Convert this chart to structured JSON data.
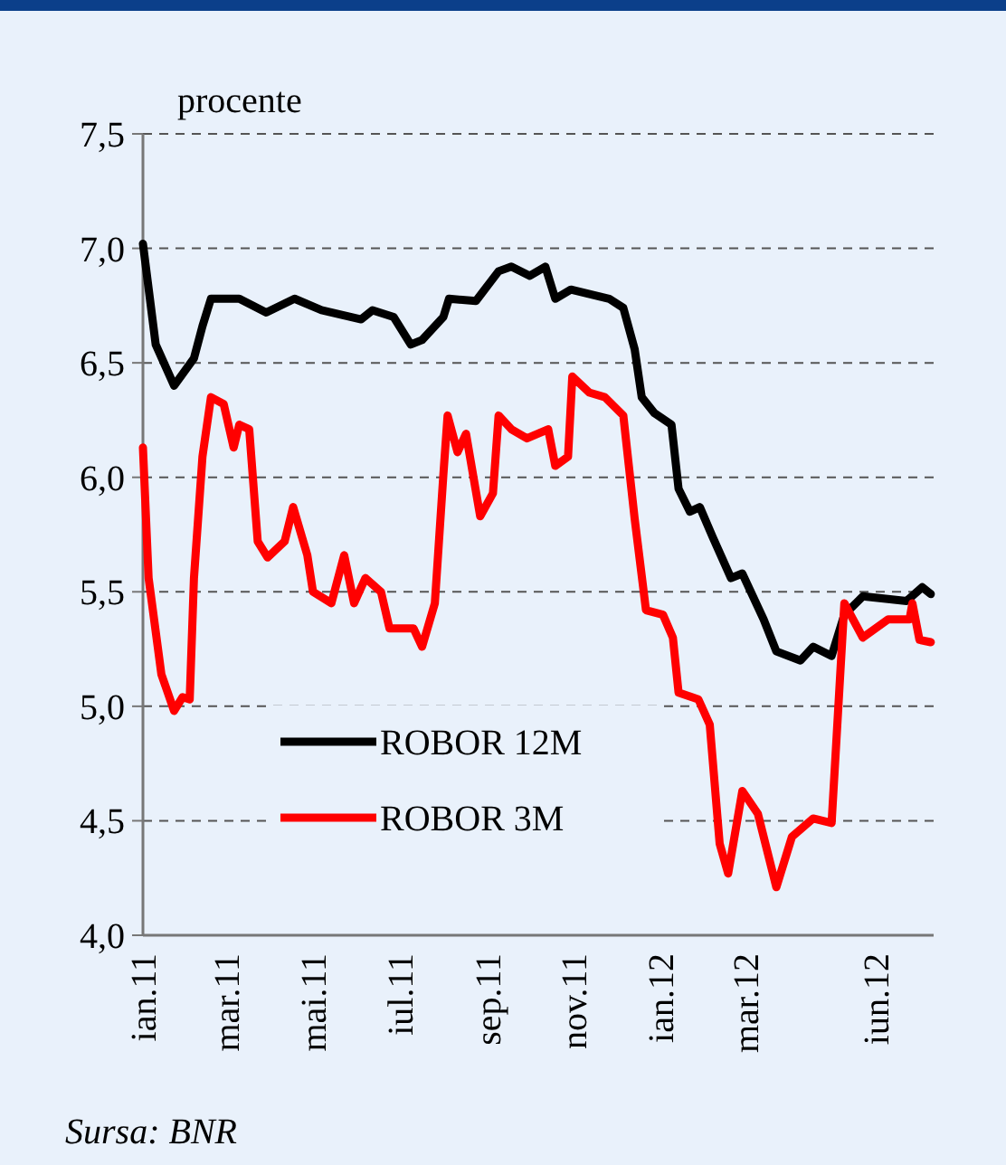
{
  "chart_data": {
    "type": "line",
    "ylabel": "procente",
    "annotations": [
      "Sursa: BNR"
    ],
    "xlim": [
      "2011-01-01",
      "2012-07-12"
    ],
    "xticks": [
      {
        "value": "2011-01-01",
        "label": "ian.11"
      },
      {
        "value": "2011-03-01",
        "label": "mar.11"
      },
      {
        "value": "2011-05-01",
        "label": "mai.11"
      },
      {
        "value": "2011-07-01",
        "label": "iul.11"
      },
      {
        "value": "2011-09-01",
        "label": "sep.11"
      },
      {
        "value": "2011-11-01",
        "label": "nov.11"
      },
      {
        "value": "2012-01-01",
        "label": "ian.12"
      },
      {
        "value": "2012-03-01",
        "label": "mar.12"
      },
      {
        "value": "2012-06-01",
        "label": "iun.12"
      }
    ],
    "ylim": [
      4.0,
      7.5
    ],
    "yticks": [
      {
        "value": 4.0,
        "label": "4,0"
      },
      {
        "value": 4.5,
        "label": "4,5"
      },
      {
        "value": 5.0,
        "label": "5,0"
      },
      {
        "value": 5.5,
        "label": "5,5"
      },
      {
        "value": 6.0,
        "label": "6,0"
      },
      {
        "value": 6.5,
        "label": "6,5"
      },
      {
        "value": 7.0,
        "label": "7,0"
      },
      {
        "value": 7.5,
        "label": "7,5"
      }
    ],
    "grid": "y",
    "legend": "bottom left",
    "marker": "none",
    "line_style": "solid",
    "series": [
      {
        "name": "ROBOR 12M",
        "color": "#000000",
        "x": [
          "2011-01-01",
          "2011-01-10",
          "2011-01-23",
          "2011-02-06",
          "2011-02-12",
          "2011-02-18",
          "2011-03-10",
          "2011-03-29",
          "2011-04-18",
          "2011-05-07",
          "2011-06-04",
          "2011-06-12",
          "2011-06-27",
          "2011-07-09",
          "2011-07-17",
          "2011-08-01",
          "2011-08-05",
          "2011-08-24",
          "2011-09-09",
          "2011-09-18",
          "2011-10-01",
          "2011-10-12",
          "2011-10-19",
          "2011-10-30",
          "2011-11-26",
          "2011-12-06",
          "2011-12-14",
          "2011-12-19",
          "2011-12-28",
          "2012-01-09",
          "2012-01-14",
          "2012-01-22",
          "2012-01-29",
          "2012-02-07",
          "2012-02-20",
          "2012-02-28",
          "2012-03-14",
          "2012-03-23",
          "2012-04-09",
          "2012-04-18",
          "2012-05-01",
          "2012-05-10",
          "2012-05-23",
          "2012-06-23",
          "2012-07-04",
          "2012-07-10"
        ],
        "values": [
          7.02,
          6.58,
          6.4,
          6.52,
          6.66,
          6.78,
          6.78,
          6.72,
          6.78,
          6.73,
          6.69,
          6.73,
          6.7,
          6.58,
          6.6,
          6.7,
          6.78,
          6.77,
          6.9,
          6.92,
          6.88,
          6.92,
          6.78,
          6.82,
          6.78,
          6.74,
          6.56,
          6.35,
          6.28,
          6.23,
          5.95,
          5.85,
          5.87,
          5.74,
          5.56,
          5.58,
          5.38,
          5.24,
          5.2,
          5.26,
          5.22,
          5.4,
          5.48,
          5.46,
          5.52,
          5.49
        ]
      },
      {
        "name": "ROBOR 3M",
        "color": "#ff0000",
        "x": [
          "2011-01-01",
          "2011-01-05",
          "2011-01-14",
          "2011-01-23",
          "2011-01-29",
          "2011-02-03",
          "2011-02-06",
          "2011-02-12",
          "2011-02-18",
          "2011-02-27",
          "2011-03-06",
          "2011-03-10",
          "2011-03-17",
          "2011-03-23",
          "2011-03-30",
          "2011-04-11",
          "2011-04-17",
          "2011-04-27",
          "2011-05-01",
          "2011-05-14",
          "2011-05-23",
          "2011-05-30",
          "2011-06-07",
          "2011-06-18",
          "2011-06-24",
          "2011-07-11",
          "2011-07-17",
          "2011-07-26",
          "2011-08-01",
          "2011-08-04",
          "2011-08-11",
          "2011-08-17",
          "2011-08-27",
          "2011-09-05",
          "2011-09-09",
          "2011-09-18",
          "2011-09-29",
          "2011-10-14",
          "2011-10-19",
          "2011-10-28",
          "2011-10-31",
          "2011-11-12",
          "2011-11-23",
          "2011-12-06",
          "2011-12-14",
          "2011-12-22",
          "2012-01-03",
          "2012-01-10",
          "2012-01-14",
          "2012-01-28",
          "2012-02-05",
          "2012-02-12",
          "2012-02-18",
          "2012-02-28",
          "2012-03-10",
          "2012-03-23",
          "2012-04-03",
          "2012-04-18",
          "2012-05-01",
          "2012-05-10",
          "2012-05-23",
          "2012-06-10",
          "2012-06-25",
          "2012-06-27",
          "2012-07-02",
          "2012-07-10"
        ],
        "values": [
          6.13,
          5.56,
          5.14,
          4.98,
          5.04,
          5.03,
          5.56,
          6.09,
          6.35,
          6.32,
          6.13,
          6.23,
          6.21,
          5.72,
          5.65,
          5.72,
          5.87,
          5.66,
          5.5,
          5.45,
          5.66,
          5.45,
          5.56,
          5.5,
          5.34,
          5.34,
          5.26,
          5.45,
          6.01,
          6.27,
          6.11,
          6.19,
          5.83,
          5.93,
          6.27,
          6.21,
          6.17,
          6.21,
          6.05,
          6.09,
          6.44,
          6.37,
          6.35,
          6.27,
          5.82,
          5.42,
          5.4,
          5.3,
          5.06,
          5.03,
          4.92,
          4.4,
          4.27,
          4.63,
          4.53,
          4.21,
          4.43,
          4.51,
          4.49,
          5.45,
          5.3,
          5.38,
          5.38,
          5.45,
          5.29,
          5.28
        ]
      }
    ]
  }
}
